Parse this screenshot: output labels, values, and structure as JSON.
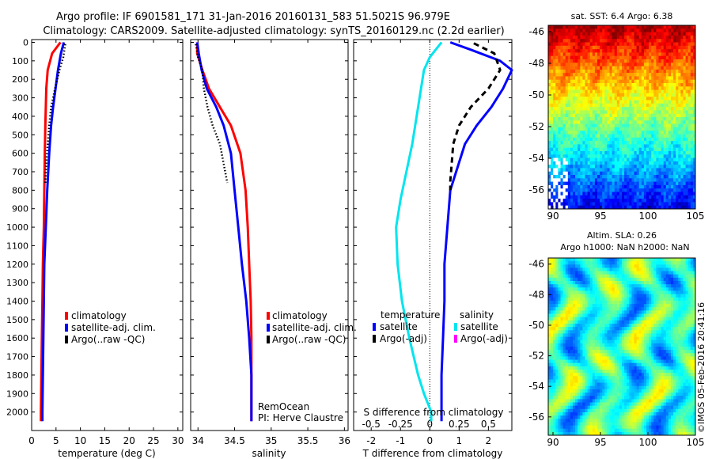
{
  "header": {
    "line1": "Argo profile: IF 6901581_171 31-Jan-2016 20160131_583 51.5021S 96.979E",
    "line2": "Climatology: CARS2009. Satellite-adjusted climatology: synTS_20160129.nc (2.2d earlier)"
  },
  "colors": {
    "climatology": "#ff0000",
    "satellite": "#0000ff",
    "argo": "#000000",
    "salinity_satellite": "#00e5ee",
    "salinity_argo": "#ff00ff"
  },
  "chart_data": [
    {
      "type": "line",
      "xlabel": "temperature (deg C)",
      "ylabel": "",
      "xlim": [
        0,
        31
      ],
      "ylim": [
        2100,
        0
      ],
      "xticks": [
        0,
        5,
        10,
        15,
        20,
        25,
        30
      ],
      "yticks": [
        0,
        100,
        200,
        300,
        400,
        500,
        600,
        700,
        800,
        900,
        1000,
        1100,
        1200,
        1300,
        1400,
        1500,
        1600,
        1700,
        1800,
        1900,
        2000
      ],
      "legend": [
        "climatology",
        "satellite-adj. clim.",
        "Argo(..raw -QC)"
      ],
      "series": [
        {
          "name": "climatology",
          "style": "solid",
          "color": "#ff0000",
          "x": [
            5.9,
            4.2,
            3.3,
            3.0,
            2.9,
            2.8,
            2.7,
            2.6,
            2.5,
            2.3,
            2.2,
            2.1,
            2.0,
            1.9,
            1.9
          ],
          "y": [
            0,
            60,
            150,
            250,
            350,
            450,
            600,
            800,
            1000,
            1200,
            1400,
            1600,
            1800,
            2000,
            2050
          ]
        },
        {
          "name": "satellite-adj. clim.",
          "style": "solid",
          "color": "#0000ff",
          "x": [
            6.6,
            6.0,
            5.4,
            4.9,
            4.4,
            4.0,
            3.6,
            3.2,
            2.9,
            2.6,
            2.5,
            2.4,
            2.3,
            2.2,
            2.2
          ],
          "y": [
            0,
            60,
            150,
            250,
            350,
            450,
            600,
            800,
            1000,
            1200,
            1400,
            1600,
            1800,
            2000,
            2050
          ]
        },
        {
          "name": "Argo(..raw -QC)",
          "style": "dotted",
          "color": "#000000",
          "x": [
            6.9,
            6.5,
            5.7,
            4.8,
            4.0,
            3.6,
            3.3,
            3.0,
            2.8
          ],
          "y": [
            10,
            80,
            150,
            250,
            350,
            450,
            550,
            650,
            760
          ]
        }
      ]
    },
    {
      "type": "line",
      "xlabel": "salinity",
      "ylabel": "",
      "xlim": [
        33.9,
        36.05
      ],
      "ylim": [
        2100,
        0
      ],
      "xticks": [
        34,
        34.5,
        35,
        35.5,
        36
      ],
      "legend": [
        "climatology",
        "satellite-adj. clim.",
        "Argo(..raw -QC)"
      ],
      "annotations": [
        "RemOcean",
        "PI: Herve Claustre"
      ],
      "series": [
        {
          "name": "climatology",
          "style": "solid",
          "color": "#ff0000",
          "x": [
            33.99,
            33.99,
            34.06,
            34.15,
            34.3,
            34.45,
            34.58,
            34.65,
            34.68,
            34.7,
            34.72,
            34.73,
            34.73,
            34.73,
            34.73
          ],
          "y": [
            0,
            60,
            150,
            250,
            350,
            450,
            600,
            800,
            1000,
            1200,
            1400,
            1600,
            1800,
            2000,
            2050
          ]
        },
        {
          "name": "satellite-adj. clim.",
          "style": "solid",
          "color": "#0000ff",
          "x": [
            33.99,
            34.01,
            34.05,
            34.12,
            34.25,
            34.35,
            34.45,
            34.5,
            34.55,
            34.6,
            34.66,
            34.7,
            34.73,
            34.73,
            34.73
          ],
          "y": [
            0,
            60,
            150,
            250,
            350,
            450,
            600,
            800,
            1000,
            1200,
            1400,
            1600,
            1800,
            2000,
            2050
          ]
        },
        {
          "name": "Argo(..raw -QC)",
          "style": "dotted",
          "color": "#000000",
          "x": [
            33.97,
            34.0,
            34.06,
            34.08,
            34.13,
            34.2,
            34.3,
            34.4
          ],
          "y": [
            10,
            80,
            150,
            250,
            350,
            450,
            550,
            760
          ]
        }
      ]
    },
    {
      "type": "line",
      "xlabel": "T difference from climatology",
      "top_label": "S difference from climatology",
      "ylabel": "",
      "xlim": [
        -2.6,
        2.8
      ],
      "ylim": [
        2100,
        0
      ],
      "xticks": [
        -2,
        -1,
        0,
        1,
        2
      ],
      "top_xtick_labels": [
        "-0.5",
        "-0.25",
        "0",
        "0.25",
        "0.5"
      ],
      "legend_headers": [
        "temperature",
        "salinity"
      ],
      "legend": [
        "satellite",
        "Argo(-adj)",
        "satellite",
        "Argo(-adj)"
      ],
      "series": [
        {
          "name": "temperature satellite",
          "style": "solid",
          "color": "#0000ff",
          "x": [
            0.7,
            1.4,
            2.4,
            2.8,
            2.5,
            2.1,
            1.6,
            1.2,
            0.9,
            0.7,
            0.6,
            0.5,
            0.5,
            0.45,
            0.4,
            0.4,
            0.4
          ],
          "y": [
            0,
            40,
            100,
            150,
            250,
            350,
            450,
            550,
            700,
            800,
            1000,
            1200,
            1400,
            1600,
            1800,
            2000,
            2050
          ]
        },
        {
          "name": "temperature Argo(-adj)",
          "style": "dashed",
          "color": "#000000",
          "x": [
            1.5,
            2.2,
            2.4,
            2.0,
            1.4,
            1.0,
            0.8,
            0.75,
            0.7,
            0.7
          ],
          "y": [
            5,
            60,
            150,
            250,
            350,
            450,
            550,
            650,
            750,
            800
          ]
        },
        {
          "name": "salinity satellite",
          "style": "solid",
          "color": "#00e5ee",
          "x": [
            0.4,
            0.0,
            -0.2,
            -0.3,
            -0.4,
            -0.5,
            -0.6,
            -0.8,
            -1.0,
            -1.15,
            -1.1,
            -0.95,
            -0.7,
            -0.4,
            -0.2,
            0.05,
            0.05
          ],
          "y": [
            0,
            80,
            150,
            250,
            350,
            450,
            550,
            700,
            850,
            1000,
            1200,
            1400,
            1600,
            1800,
            1900,
            2000,
            2050
          ]
        }
      ]
    },
    {
      "type": "heatmap",
      "title": "sat. SST: 6.4 Argo: 6.38",
      "xlim": [
        89.5,
        105
      ],
      "ylim": [
        -57.2,
        -45.6
      ],
      "xticks": [
        90,
        95,
        100,
        105
      ],
      "yticks": [
        -46,
        -48,
        -50,
        -52,
        -54,
        -56
      ]
    },
    {
      "type": "heatmap",
      "title": "Altim. SLA: 0.26",
      "subtitle": "Argo h1000: NaN h2000: NaN",
      "xlim": [
        89.5,
        105
      ],
      "ylim": [
        -57.2,
        -45.6
      ],
      "xticks": [
        90,
        95,
        100,
        105
      ],
      "yticks": [
        -46,
        -48,
        -50,
        -52,
        -54,
        -56
      ]
    }
  ],
  "footer": {
    "side_label": "©IMOS 05-Feb-2016 20:41:16"
  }
}
